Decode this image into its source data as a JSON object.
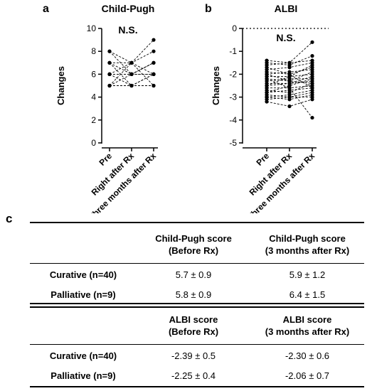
{
  "panels": {
    "a": {
      "label": "a",
      "title": "Child-Pugh",
      "ns": "N.S."
    },
    "b": {
      "label": "b",
      "title": "ALBI",
      "ns": "N.S."
    },
    "c": {
      "label": "c"
    }
  },
  "chart_data": [
    {
      "type": "line",
      "title": "Child-Pugh",
      "ylabel": "Changes",
      "categories": [
        "Pre",
        "Right after Rx",
        "Three months after Rx"
      ],
      "ylim": [
        0,
        10
      ],
      "yticks": [
        0,
        2,
        4,
        6,
        8,
        10
      ],
      "annotation": "N.S.",
      "series": [
        {
          "values": [
            5,
            5,
            5
          ]
        },
        {
          "values": [
            5,
            6,
            6
          ]
        },
        {
          "values": [
            5,
            7,
            6
          ]
        },
        {
          "values": [
            6,
            5,
            6
          ]
        },
        {
          "values": [
            6,
            6,
            7
          ]
        },
        {
          "values": [
            6,
            7,
            5
          ]
        },
        {
          "values": [
            7,
            6,
            7
          ]
        },
        {
          "values": [
            7,
            7,
            8
          ]
        },
        {
          "values": [
            7,
            5,
            6
          ]
        },
        {
          "values": [
            8,
            7,
            9
          ]
        },
        {
          "values": [
            8,
            6,
            7
          ]
        },
        {
          "values": [
            6,
            6,
            6
          ]
        }
      ]
    },
    {
      "type": "line",
      "title": "ALBI",
      "ylabel": "Changes",
      "categories": [
        "Pre",
        "Right after Rx",
        "Three months after Rx"
      ],
      "ylim": [
        -5,
        0
      ],
      "yticks": [
        -5,
        -4,
        -3,
        -2,
        -1,
        0
      ],
      "reference_line": 0,
      "annotation": "N.S.",
      "series": [
        {
          "values": [
            -1.4,
            -1.5,
            -0.6
          ]
        },
        {
          "values": [
            -1.5,
            -1.6,
            -1.2
          ]
        },
        {
          "values": [
            -1.6,
            -1.5,
            -1.4
          ]
        },
        {
          "values": [
            -1.8,
            -1.7,
            -1.5
          ]
        },
        {
          "values": [
            -1.9,
            -2.0,
            -1.7
          ]
        },
        {
          "values": [
            -2.0,
            -1.9,
            -1.8
          ]
        },
        {
          "values": [
            -2.1,
            -2.1,
            -2.0
          ]
        },
        {
          "values": [
            -2.2,
            -2.3,
            -1.9
          ]
        },
        {
          "values": [
            -2.3,
            -2.2,
            -2.2
          ]
        },
        {
          "values": [
            -2.4,
            -2.4,
            -2.1
          ]
        },
        {
          "values": [
            -2.5,
            -2.4,
            -2.3
          ]
        },
        {
          "values": [
            -2.6,
            -2.6,
            -2.5
          ]
        },
        {
          "values": [
            -2.7,
            -2.8,
            -2.4
          ]
        },
        {
          "values": [
            -2.8,
            -2.7,
            -2.6
          ]
        },
        {
          "values": [
            -2.9,
            -3.0,
            -2.8
          ]
        },
        {
          "values": [
            -3.0,
            -3.1,
            -2.9
          ]
        },
        {
          "values": [
            -3.1,
            -3.0,
            -3.0
          ]
        },
        {
          "values": [
            -3.2,
            -3.4,
            -3.1
          ]
        },
        {
          "values": [
            -2.2,
            -2.6,
            -3.9
          ]
        },
        {
          "values": [
            -1.7,
            -2.0,
            -2.6
          ]
        },
        {
          "values": [
            -2.5,
            -2.1,
            -1.6
          ]
        },
        {
          "values": [
            -2.8,
            -2.5,
            -2.2
          ]
        },
        {
          "values": [
            -3.0,
            -2.9,
            -2.7
          ]
        },
        {
          "values": [
            -2.0,
            -2.3,
            -2.4
          ]
        }
      ]
    }
  ],
  "table1": {
    "header": [
      "",
      "Child-Pugh score\n(Before Rx)",
      "Child-Pugh score\n(3 months after Rx)"
    ],
    "rows": [
      {
        "label": "Curative (n=40)",
        "before": "5.7 ± 0.9",
        "after": "5.9 ± 1.2"
      },
      {
        "label": "Palliative (n=9)",
        "before": "5.8 ± 0.9",
        "after": "6.4 ± 1.5"
      }
    ]
  },
  "table2": {
    "header": [
      "",
      "ALBI score\n(Before Rx)",
      "ALBI score\n(3 months after Rx)"
    ],
    "rows": [
      {
        "label": "Curative (n=40)",
        "before": "-2.39 ± 0.5",
        "after": "-2.30 ± 0.6"
      },
      {
        "label": "Palliative (n=9)",
        "before": "-2.25 ± 0.4",
        "after": "-2.06 ± 0.7"
      }
    ]
  }
}
